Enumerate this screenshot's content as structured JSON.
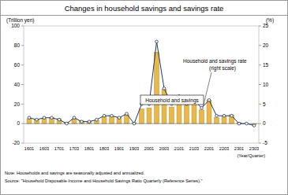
{
  "chart_data": {
    "type": "bar",
    "title": "Changes in household savings and savings rate",
    "y_label": "(Trillion yen)",
    "y2_label": "(%)",
    "x_label": "(Year/Quarter)",
    "categories": [
      "1601",
      null,
      "1603",
      null,
      "1701",
      null,
      "1703",
      null,
      "1801",
      null,
      "1803",
      null,
      "1901",
      null,
      "1903",
      null,
      "2001",
      null,
      "2003",
      null,
      "2101",
      null,
      "2103",
      null,
      "2201",
      null,
      "2203",
      null,
      "2301",
      null,
      "2303"
    ],
    "series": [
      {
        "name": "Household and savings",
        "type": "bar",
        "color": "#e8b84a",
        "values": [
          5,
          4,
          5,
          6,
          5,
          1,
          5,
          3,
          2,
          3,
          7,
          8,
          6,
          9,
          1,
          15,
          16,
          73,
          35,
          17,
          26,
          20,
          24,
          14,
          24,
          6,
          8,
          9,
          1,
          0,
          -1
        ]
      },
      {
        "name": "Household and savings rate (right scale)",
        "type": "line",
        "axis": "y2",
        "color": "#1f3864",
        "marker": "circle",
        "line_style": "solid",
        "values": [
          1.5,
          1,
          1.5,
          1.5,
          1,
          0,
          1.5,
          0.5,
          0.5,
          1,
          2,
          2,
          1.5,
          2.5,
          0,
          5,
          5,
          21,
          9,
          5,
          7,
          5,
          6,
          4,
          6,
          2,
          2,
          2,
          0,
          0,
          -0.5
        ]
      }
    ],
    "ylim": [
      -20,
      100
    ],
    "yticks": [
      -20,
      0,
      20,
      40,
      60,
      80,
      100
    ],
    "y2lim": [
      -5,
      25
    ],
    "y2ticks": [
      -5,
      0,
      5,
      10,
      15,
      20,
      25
    ],
    "grid": false,
    "annotations": [
      "Household and savings rate",
      "(right scale)",
      "Household and savings"
    ],
    "notes": [
      "Note: Households and savings are seasonally adjusted and annualized.",
      "Source: \"Household Disposable Income and Household Savings Ratio Quarterly (Reference Series).\""
    ]
  }
}
